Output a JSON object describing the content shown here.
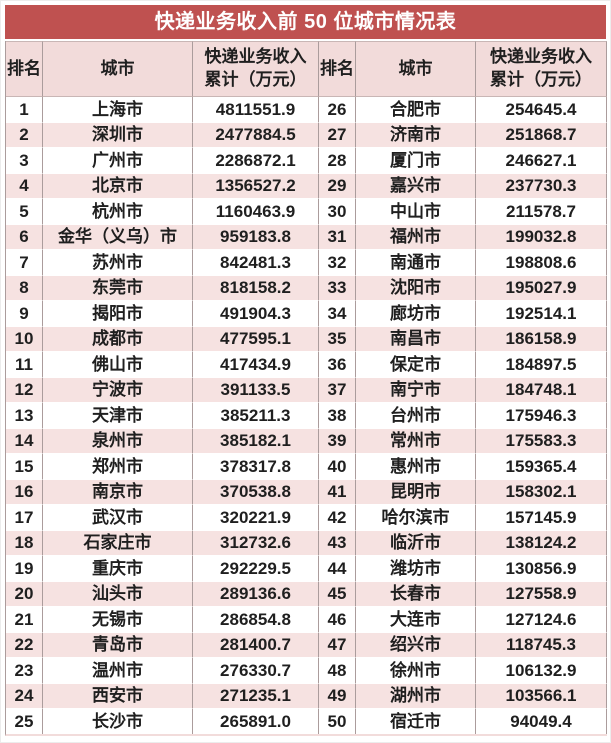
{
  "title": "快递业务收入前 50 位城市情况表",
  "colors": {
    "title_bg": "#bf5150",
    "title_text": "#ffffff",
    "header_bg": "#f2dbda",
    "row_pink": "#f6e2e1",
    "row_white": "#ffffff",
    "vertical_border": "#ab9c9c",
    "text": "#1f1f1f"
  },
  "table": {
    "headers": {
      "rank": "排名",
      "city": "城市",
      "revenue_line1": "快递业务收入",
      "revenue_line2": "累计（万元）"
    },
    "left_rows": [
      {
        "rank": "1",
        "city": "上海市",
        "revenue": "4811551.9"
      },
      {
        "rank": "2",
        "city": "深圳市",
        "revenue": "2477884.5"
      },
      {
        "rank": "3",
        "city": "广州市",
        "revenue": "2286872.1"
      },
      {
        "rank": "4",
        "city": "北京市",
        "revenue": "1356527.2"
      },
      {
        "rank": "5",
        "city": "杭州市",
        "revenue": "1160463.9"
      },
      {
        "rank": "6",
        "city": "金华（义乌）市",
        "revenue": "959183.8"
      },
      {
        "rank": "7",
        "city": "苏州市",
        "revenue": "842481.3"
      },
      {
        "rank": "8",
        "city": "东莞市",
        "revenue": "818158.2"
      },
      {
        "rank": "9",
        "city": "揭阳市",
        "revenue": "491904.3"
      },
      {
        "rank": "10",
        "city": "成都市",
        "revenue": "477595.1"
      },
      {
        "rank": "11",
        "city": "佛山市",
        "revenue": "417434.9"
      },
      {
        "rank": "12",
        "city": "宁波市",
        "revenue": "391133.5"
      },
      {
        "rank": "13",
        "city": "天津市",
        "revenue": "385211.3"
      },
      {
        "rank": "14",
        "city": "泉州市",
        "revenue": "385182.1"
      },
      {
        "rank": "15",
        "city": "郑州市",
        "revenue": "378317.8"
      },
      {
        "rank": "16",
        "city": "南京市",
        "revenue": "370538.8"
      },
      {
        "rank": "17",
        "city": "武汉市",
        "revenue": "320221.9"
      },
      {
        "rank": "18",
        "city": "石家庄市",
        "revenue": "312732.6"
      },
      {
        "rank": "19",
        "city": "重庆市",
        "revenue": "292229.5"
      },
      {
        "rank": "20",
        "city": "汕头市",
        "revenue": "289136.6"
      },
      {
        "rank": "21",
        "city": "无锡市",
        "revenue": "286854.8"
      },
      {
        "rank": "22",
        "city": "青岛市",
        "revenue": "281400.7"
      },
      {
        "rank": "23",
        "city": "温州市",
        "revenue": "276330.7"
      },
      {
        "rank": "24",
        "city": "西安市",
        "revenue": "271235.1"
      },
      {
        "rank": "25",
        "city": "长沙市",
        "revenue": "265891.0"
      }
    ],
    "right_rows": [
      {
        "rank": "26",
        "city": "合肥市",
        "revenue": "254645.4"
      },
      {
        "rank": "27",
        "city": "济南市",
        "revenue": "251868.7"
      },
      {
        "rank": "28",
        "city": "厦门市",
        "revenue": "246627.1"
      },
      {
        "rank": "29",
        "city": "嘉兴市",
        "revenue": "237730.3"
      },
      {
        "rank": "30",
        "city": "中山市",
        "revenue": "211578.7"
      },
      {
        "rank": "31",
        "city": "福州市",
        "revenue": "199032.8"
      },
      {
        "rank": "32",
        "city": "南通市",
        "revenue": "198808.6"
      },
      {
        "rank": "33",
        "city": "沈阳市",
        "revenue": "195027.9"
      },
      {
        "rank": "34",
        "city": "廊坊市",
        "revenue": "192514.1"
      },
      {
        "rank": "35",
        "city": "南昌市",
        "revenue": "186158.9"
      },
      {
        "rank": "36",
        "city": "保定市",
        "revenue": "184897.5"
      },
      {
        "rank": "37",
        "city": "南宁市",
        "revenue": "184748.1"
      },
      {
        "rank": "38",
        "city": "台州市",
        "revenue": "175946.3"
      },
      {
        "rank": "39",
        "city": "常州市",
        "revenue": "175583.3"
      },
      {
        "rank": "40",
        "city": "惠州市",
        "revenue": "159365.4"
      },
      {
        "rank": "41",
        "city": "昆明市",
        "revenue": "158302.1"
      },
      {
        "rank": "42",
        "city": "哈尔滨市",
        "revenue": "157145.9"
      },
      {
        "rank": "43",
        "city": "临沂市",
        "revenue": "138124.2"
      },
      {
        "rank": "44",
        "city": "潍坊市",
        "revenue": "130856.9"
      },
      {
        "rank": "45",
        "city": "长春市",
        "revenue": "127558.9"
      },
      {
        "rank": "46",
        "city": "大连市",
        "revenue": "127124.6"
      },
      {
        "rank": "47",
        "city": "绍兴市",
        "revenue": "118745.3"
      },
      {
        "rank": "48",
        "city": "徐州市",
        "revenue": "106132.9"
      },
      {
        "rank": "49",
        "city": "湖州市",
        "revenue": "103566.1"
      },
      {
        "rank": "50",
        "city": "宿迁市",
        "revenue": "94049.4"
      }
    ]
  },
  "chart_data": {
    "type": "table",
    "title": "快递业务收入前 50 位城市情况表",
    "columns": [
      "排名",
      "城市",
      "快递业务收入累计（万元）"
    ],
    "rows": [
      [
        1,
        "上海市",
        4811551.9
      ],
      [
        2,
        "深圳市",
        2477884.5
      ],
      [
        3,
        "广州市",
        2286872.1
      ],
      [
        4,
        "北京市",
        1356527.2
      ],
      [
        5,
        "杭州市",
        1160463.9
      ],
      [
        6,
        "金华（义乌）市",
        959183.8
      ],
      [
        7,
        "苏州市",
        842481.3
      ],
      [
        8,
        "东莞市",
        818158.2
      ],
      [
        9,
        "揭阳市",
        491904.3
      ],
      [
        10,
        "成都市",
        477595.1
      ],
      [
        11,
        "佛山市",
        417434.9
      ],
      [
        12,
        "宁波市",
        391133.5
      ],
      [
        13,
        "天津市",
        385211.3
      ],
      [
        14,
        "泉州市",
        385182.1
      ],
      [
        15,
        "郑州市",
        378317.8
      ],
      [
        16,
        "南京市",
        370538.8
      ],
      [
        17,
        "武汉市",
        320221.9
      ],
      [
        18,
        "石家庄市",
        312732.6
      ],
      [
        19,
        "重庆市",
        292229.5
      ],
      [
        20,
        "汕头市",
        289136.6
      ],
      [
        21,
        "无锡市",
        286854.8
      ],
      [
        22,
        "青岛市",
        281400.7
      ],
      [
        23,
        "温州市",
        276330.7
      ],
      [
        24,
        "西安市",
        271235.1
      ],
      [
        25,
        "长沙市",
        265891.0
      ],
      [
        26,
        "合肥市",
        254645.4
      ],
      [
        27,
        "济南市",
        251868.7
      ],
      [
        28,
        "厦门市",
        246627.1
      ],
      [
        29,
        "嘉兴市",
        237730.3
      ],
      [
        30,
        "中山市",
        211578.7
      ],
      [
        31,
        "福州市",
        199032.8
      ],
      [
        32,
        "南通市",
        198808.6
      ],
      [
        33,
        "沈阳市",
        195027.9
      ],
      [
        34,
        "廊坊市",
        192514.1
      ],
      [
        35,
        "南昌市",
        186158.9
      ],
      [
        36,
        "保定市",
        184897.5
      ],
      [
        37,
        "南宁市",
        184748.1
      ],
      [
        38,
        "台州市",
        175946.3
      ],
      [
        39,
        "常州市",
        175583.3
      ],
      [
        40,
        "惠州市",
        159365.4
      ],
      [
        41,
        "昆明市",
        158302.1
      ],
      [
        42,
        "哈尔滨市",
        157145.9
      ],
      [
        43,
        "临沂市",
        138124.2
      ],
      [
        44,
        "潍坊市",
        130856.9
      ],
      [
        45,
        "长春市",
        127558.9
      ],
      [
        46,
        "大连市",
        127124.6
      ],
      [
        47,
        "绍兴市",
        118745.3
      ],
      [
        48,
        "徐州市",
        106132.9
      ],
      [
        49,
        "湖州市",
        103566.1
      ],
      [
        50,
        "宿迁市",
        94049.4
      ]
    ]
  }
}
